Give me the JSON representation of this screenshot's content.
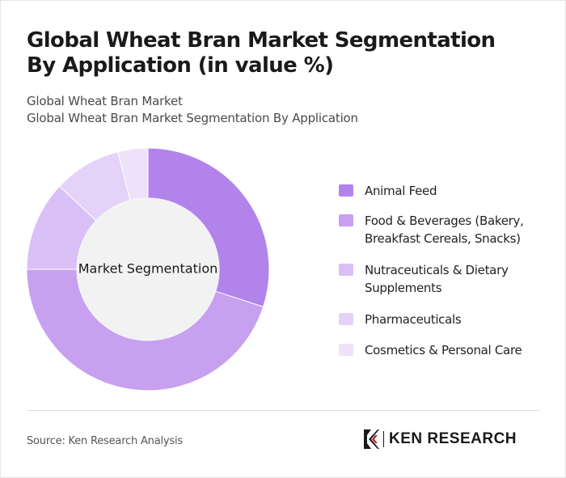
{
  "header": {
    "title": "Global Wheat Bran Market Segmentation By Application (in value %)",
    "subtitle_line1": "Global Wheat Bran Market",
    "subtitle_line2": "Global Wheat Bran Market Segmentation By Application"
  },
  "chart_data": {
    "type": "pie",
    "variant": "donut",
    "center_label": "Market Segmentation",
    "categories": [
      "Animal Feed",
      "Food & Beverages (Bakery, Breakfast Cereals, Snacks)",
      "Nutraceuticals & Dietary Supplements",
      "Pharmaceuticals",
      "Cosmetics & Personal Care"
    ],
    "values": [
      30,
      45,
      12,
      9,
      4
    ],
    "colors": [
      "#b383ec",
      "#c7a0f0",
      "#d9c0f6",
      "#e4d2f8",
      "#eee2fa"
    ],
    "legend_position": "right"
  },
  "footer": {
    "source": "Source: Ken Research Analysis",
    "logo_text": "KEN RESEARCH"
  }
}
